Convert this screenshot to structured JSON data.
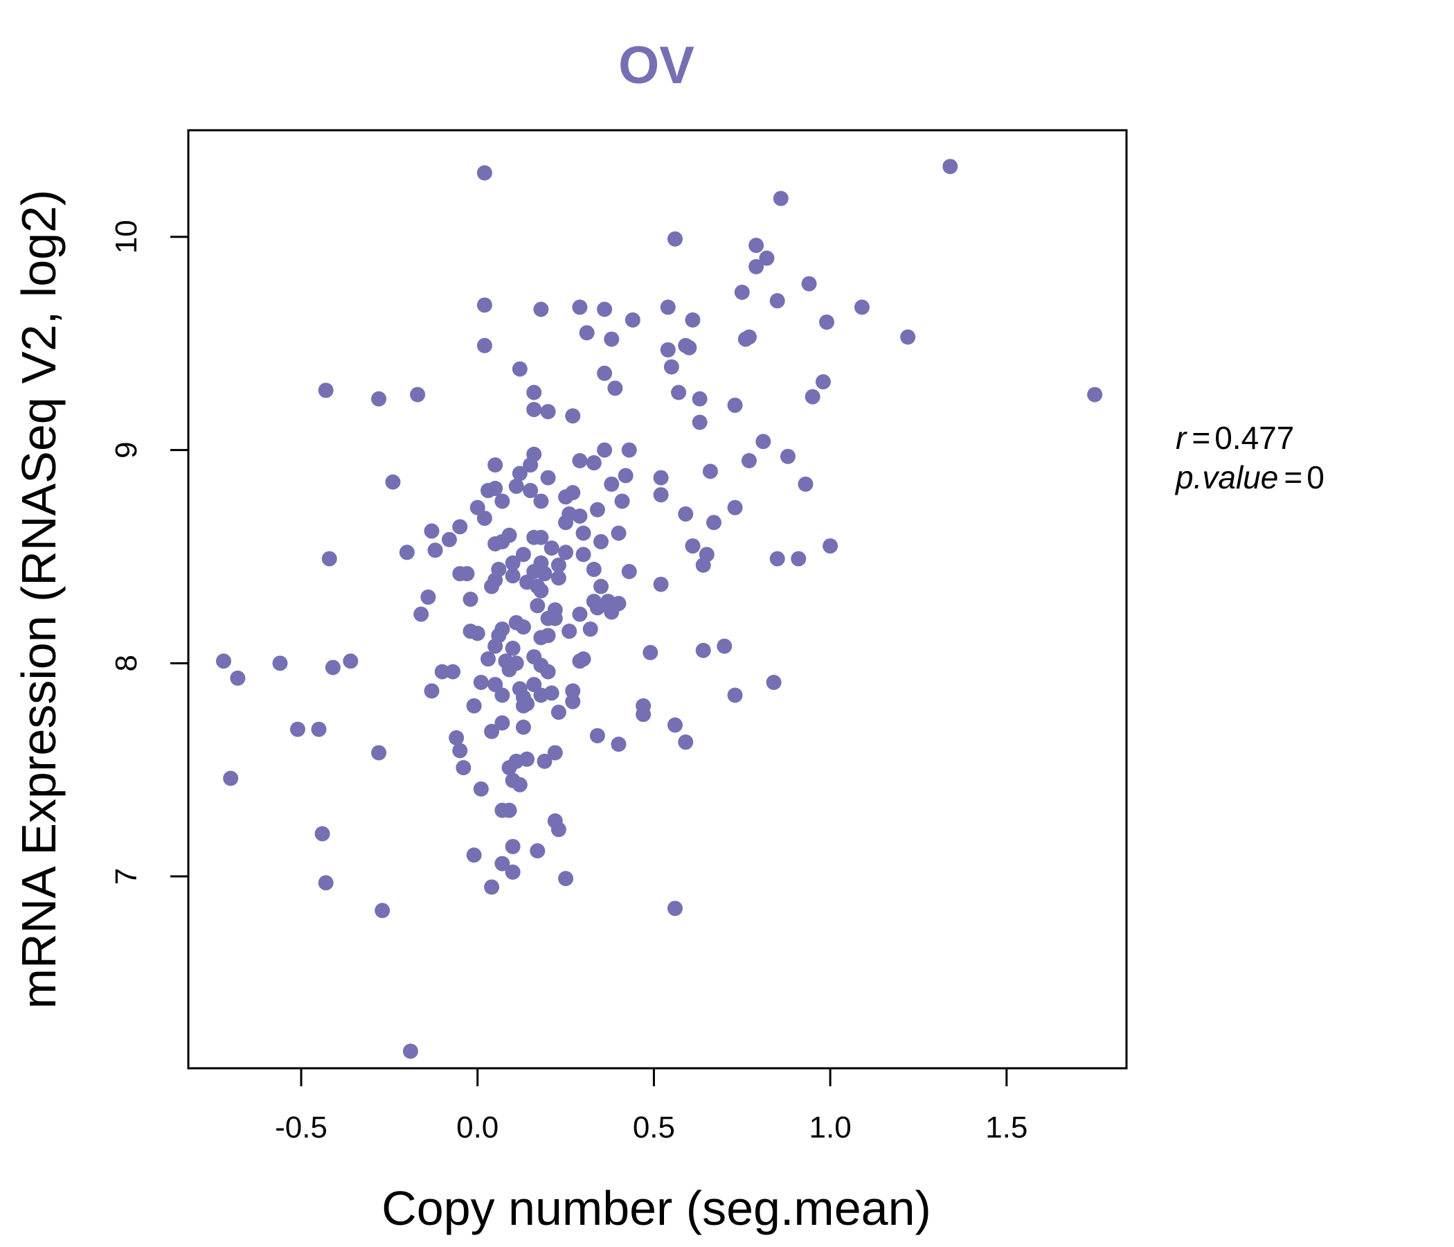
{
  "chart_data": {
    "type": "scatter",
    "title": "OV",
    "xlabel": "Copy number (seg.mean)",
    "ylabel": "mRNA Expression (RNASeq V2, log2)",
    "xlim": [
      -0.82,
      1.84
    ],
    "ylim": [
      6.1,
      10.5
    ],
    "xticks": [
      -0.5,
      0.0,
      0.5,
      1.0,
      1.5
    ],
    "xtick_labels": [
      "-0.5",
      "0.0",
      "0.5",
      "1.0",
      "1.5"
    ],
    "yticks": [
      7,
      8,
      9,
      10
    ],
    "ytick_labels": [
      "7",
      "8",
      "9",
      "10"
    ],
    "point_color": "#7570b3",
    "annotation": {
      "r_label": "r",
      "r_value": "0.477",
      "p_label": "p.value",
      "p_value": "0",
      "equals": "="
    },
    "points": [
      [
        0.02,
        10.3
      ],
      [
        1.34,
        10.33
      ],
      [
        0.86,
        10.18
      ],
      [
        0.56,
        9.99
      ],
      [
        0.79,
        9.96
      ],
      [
        0.82,
        9.9
      ],
      [
        0.79,
        9.86
      ],
      [
        0.94,
        9.78
      ],
      [
        0.75,
        9.74
      ],
      [
        0.85,
        9.7
      ],
      [
        0.02,
        9.68
      ],
      [
        0.18,
        9.66
      ],
      [
        0.29,
        9.67
      ],
      [
        0.36,
        9.66
      ],
      [
        0.54,
        9.67
      ],
      [
        1.09,
        9.67
      ],
      [
        0.61,
        9.61
      ],
      [
        0.44,
        9.61
      ],
      [
        0.99,
        9.6
      ],
      [
        0.31,
        9.55
      ],
      [
        0.38,
        9.52
      ],
      [
        0.76,
        9.52
      ],
      [
        0.77,
        9.53
      ],
      [
        1.22,
        9.53
      ],
      [
        0.02,
        9.49
      ],
      [
        0.54,
        9.47
      ],
      [
        0.59,
        9.49
      ],
      [
        0.6,
        9.48
      ],
      [
        0.55,
        9.39
      ],
      [
        0.12,
        9.38
      ],
      [
        0.36,
        9.36
      ],
      [
        0.98,
        9.32
      ],
      [
        -0.43,
        9.28
      ],
      [
        0.39,
        9.29
      ],
      [
        0.16,
        9.27
      ],
      [
        0.57,
        9.27
      ],
      [
        -0.28,
        9.24
      ],
      [
        -0.17,
        9.26
      ],
      [
        0.63,
        9.24
      ],
      [
        0.95,
        9.25
      ],
      [
        1.75,
        9.26
      ],
      [
        0.16,
        9.19
      ],
      [
        0.73,
        9.21
      ],
      [
        0.2,
        9.18
      ],
      [
        0.27,
        9.16
      ],
      [
        0.63,
        9.13
      ],
      [
        0.81,
        9.04
      ],
      [
        0.36,
        9.0
      ],
      [
        0.43,
        9.0
      ],
      [
        0.16,
        8.98
      ],
      [
        0.77,
        8.95
      ],
      [
        0.88,
        8.97
      ],
      [
        0.29,
        8.95
      ],
      [
        0.33,
        8.94
      ],
      [
        0.05,
        8.93
      ],
      [
        0.15,
        8.93
      ],
      [
        0.12,
        8.89
      ],
      [
        0.66,
        8.9
      ],
      [
        0.2,
        8.87
      ],
      [
        0.42,
        8.88
      ],
      [
        0.52,
        8.87
      ],
      [
        -0.24,
        8.85
      ],
      [
        0.38,
        8.84
      ],
      [
        0.93,
        8.84
      ],
      [
        0.03,
        8.81
      ],
      [
        0.11,
        8.83
      ],
      [
        0.15,
        8.81
      ],
      [
        0.25,
        8.78
      ],
      [
        0.27,
        8.8
      ],
      [
        0.05,
        8.82
      ],
      [
        0.52,
        8.79
      ],
      [
        0.07,
        8.76
      ],
      [
        0.18,
        8.76
      ],
      [
        0.41,
        8.76
      ],
      [
        0.0,
        8.73
      ],
      [
        0.73,
        8.73
      ],
      [
        0.34,
        8.72
      ],
      [
        0.26,
        8.7
      ],
      [
        0.29,
        8.69
      ],
      [
        0.59,
        8.7
      ],
      [
        0.02,
        8.68
      ],
      [
        0.25,
        8.66
      ],
      [
        0.67,
        8.66
      ],
      [
        -0.05,
        8.64
      ],
      [
        -0.13,
        8.62
      ],
      [
        0.16,
        8.59
      ],
      [
        0.09,
        8.6
      ],
      [
        0.18,
        8.59
      ],
      [
        0.3,
        8.61
      ],
      [
        0.4,
        8.61
      ],
      [
        0.05,
        8.56
      ],
      [
        -0.08,
        8.58
      ],
      [
        0.07,
        8.57
      ],
      [
        0.21,
        8.54
      ],
      [
        0.35,
        8.57
      ],
      [
        -0.2,
        8.52
      ],
      [
        -0.12,
        8.53
      ],
      [
        0.13,
        8.51
      ],
      [
        0.25,
        8.52
      ],
      [
        0.3,
        8.51
      ],
      [
        0.61,
        8.55
      ],
      [
        1.0,
        8.55
      ],
      [
        -0.42,
        8.49
      ],
      [
        0.1,
        8.47
      ],
      [
        0.18,
        8.47
      ],
      [
        0.23,
        8.46
      ],
      [
        0.65,
        8.51
      ],
      [
        0.85,
        8.49
      ],
      [
        0.91,
        8.49
      ],
      [
        0.06,
        8.44
      ],
      [
        0.16,
        8.43
      ],
      [
        0.33,
        8.44
      ],
      [
        0.43,
        8.43
      ],
      [
        0.64,
        8.46
      ],
      [
        -0.05,
        8.42
      ],
      [
        -0.03,
        8.42
      ],
      [
        0.1,
        8.41
      ],
      [
        0.19,
        8.42
      ],
      [
        0.23,
        8.4
      ],
      [
        0.05,
        8.39
      ],
      [
        0.14,
        8.38
      ],
      [
        0.17,
        8.36
      ],
      [
        0.35,
        8.36
      ],
      [
        0.52,
        8.37
      ],
      [
        -0.14,
        8.31
      ],
      [
        0.04,
        8.36
      ],
      [
        0.18,
        8.34
      ],
      [
        0.33,
        8.29
      ],
      [
        0.37,
        8.29
      ],
      [
        0.4,
        8.28
      ],
      [
        0.17,
        8.27
      ],
      [
        0.22,
        8.25
      ],
      [
        0.29,
        8.23
      ],
      [
        0.34,
        8.26
      ],
      [
        0.38,
        8.24
      ],
      [
        -0.16,
        8.23
      ],
      [
        -0.02,
        8.3
      ],
      [
        0.11,
        8.19
      ],
      [
        0.13,
        8.17
      ],
      [
        0.2,
        8.21
      ],
      [
        0.22,
        8.21
      ],
      [
        -0.02,
        8.15
      ],
      [
        0.0,
        8.14
      ],
      [
        0.07,
        8.16
      ],
      [
        0.26,
        8.15
      ],
      [
        0.32,
        8.16
      ],
      [
        0.18,
        8.12
      ],
      [
        0.2,
        8.13
      ],
      [
        0.06,
        8.13
      ],
      [
        0.05,
        8.08
      ],
      [
        0.1,
        8.07
      ],
      [
        0.16,
        8.03
      ],
      [
        0.49,
        8.05
      ],
      [
        0.64,
        8.06
      ],
      [
        0.7,
        8.08
      ],
      [
        0.03,
        8.02
      ],
      [
        0.08,
        8.01
      ],
      [
        0.11,
        8.0
      ],
      [
        0.18,
        7.99
      ],
      [
        0.29,
        8.01
      ],
      [
        0.3,
        8.02
      ],
      [
        -0.72,
        8.01
      ],
      [
        -0.56,
        8.0
      ],
      [
        -0.36,
        8.01
      ],
      [
        -0.41,
        7.98
      ],
      [
        0.09,
        7.97
      ],
      [
        0.2,
        7.96
      ],
      [
        -0.1,
        7.96
      ],
      [
        -0.07,
        7.96
      ],
      [
        -0.68,
        7.93
      ],
      [
        0.01,
        7.91
      ],
      [
        0.05,
        7.9
      ],
      [
        0.12,
        7.88
      ],
      [
        0.16,
        7.9
      ],
      [
        0.21,
        7.86
      ],
      [
        0.27,
        7.87
      ],
      [
        0.84,
        7.91
      ],
      [
        -0.13,
        7.87
      ],
      [
        0.07,
        7.85
      ],
      [
        0.13,
        7.84
      ],
      [
        0.18,
        7.85
      ],
      [
        0.14,
        7.81
      ],
      [
        0.27,
        7.82
      ],
      [
        0.73,
        7.85
      ],
      [
        -0.01,
        7.8
      ],
      [
        0.47,
        7.8
      ],
      [
        0.13,
        7.8
      ],
      [
        0.23,
        7.77
      ],
      [
        0.47,
        7.76
      ],
      [
        -0.51,
        7.69
      ],
      [
        -0.45,
        7.69
      ],
      [
        0.04,
        7.68
      ],
      [
        0.07,
        7.72
      ],
      [
        0.13,
        7.7
      ],
      [
        0.56,
        7.71
      ],
      [
        -0.06,
        7.65
      ],
      [
        0.34,
        7.66
      ],
      [
        0.4,
        7.62
      ],
      [
        0.59,
        7.63
      ],
      [
        -0.05,
        7.59
      ],
      [
        -0.28,
        7.58
      ],
      [
        0.22,
        7.58
      ],
      [
        0.19,
        7.54
      ],
      [
        0.14,
        7.55
      ],
      [
        0.11,
        7.54
      ],
      [
        -0.04,
        7.51
      ],
      [
        0.09,
        7.51
      ],
      [
        0.1,
        7.45
      ],
      [
        0.12,
        7.43
      ],
      [
        0.01,
        7.41
      ],
      [
        -0.7,
        7.46
      ],
      [
        0.07,
        7.31
      ],
      [
        0.09,
        7.31
      ],
      [
        0.22,
        7.26
      ],
      [
        0.23,
        7.22
      ],
      [
        -0.44,
        7.2
      ],
      [
        0.1,
        7.14
      ],
      [
        0.17,
        7.12
      ],
      [
        -0.01,
        7.1
      ],
      [
        0.07,
        7.06
      ],
      [
        0.1,
        7.02
      ],
      [
        0.25,
        6.99
      ],
      [
        0.04,
        6.95
      ],
      [
        -0.43,
        6.97
      ],
      [
        0.56,
        6.85
      ],
      [
        -0.27,
        6.84
      ],
      [
        -0.19,
        6.18
      ]
    ]
  }
}
